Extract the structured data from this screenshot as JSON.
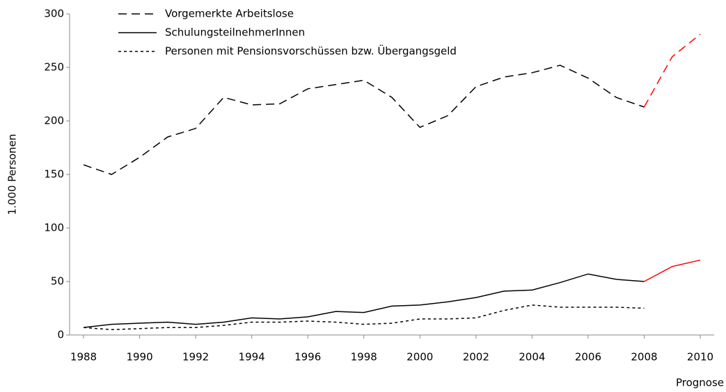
{
  "chart_data": {
    "type": "line",
    "y_label": "1.000 Personen",
    "x": [
      1988,
      1989,
      1990,
      1991,
      1992,
      1993,
      1994,
      1995,
      1996,
      1997,
      1998,
      1999,
      2000,
      2001,
      2002,
      2003,
      2004,
      2005,
      2006,
      2007,
      2008,
      2009,
      2010
    ],
    "series": [
      {
        "name": "Vorgemerkte Arbeitslose",
        "color": "#000000",
        "line_style": "long-dash",
        "values": [
          159,
          150,
          166,
          185,
          193,
          222,
          215,
          216,
          230,
          234,
          238,
          222,
          194,
          205,
          232,
          241,
          245,
          252,
          240,
          222,
          213,
          260,
          281
        ]
      },
      {
        "name": "SchulungsteilnehmerInnen",
        "color": "#000000",
        "line_style": "solid",
        "values": [
          7,
          10,
          11,
          12,
          10,
          12,
          16,
          15,
          17,
          22,
          21,
          27,
          28,
          31,
          35,
          41,
          42,
          49,
          57,
          52,
          50,
          64,
          70
        ]
      },
      {
        "name": "Personen mit Pensionsvorschüssen bzw. Übergangsgeld",
        "color": "#000000",
        "line_style": "short-dash",
        "values": [
          7,
          5,
          6,
          7,
          7,
          9,
          12,
          12,
          13,
          12,
          10,
          11,
          15,
          15,
          16,
          23,
          28,
          26,
          26,
          26,
          25,
          null,
          null
        ]
      }
    ],
    "forecast": {
      "label": "Prognose",
      "from": 2008,
      "color": "#ff0000"
    },
    "xlim": [
      1988,
      2010
    ],
    "xticks": [
      1988,
      1990,
      1992,
      1994,
      1996,
      1998,
      2000,
      2002,
      2004,
      2006,
      2008,
      2010
    ],
    "ylim": [
      0,
      300
    ],
    "yticks": [
      0,
      50,
      100,
      150,
      200,
      250,
      300
    ],
    "legend": "top-left",
    "grid": false
  }
}
